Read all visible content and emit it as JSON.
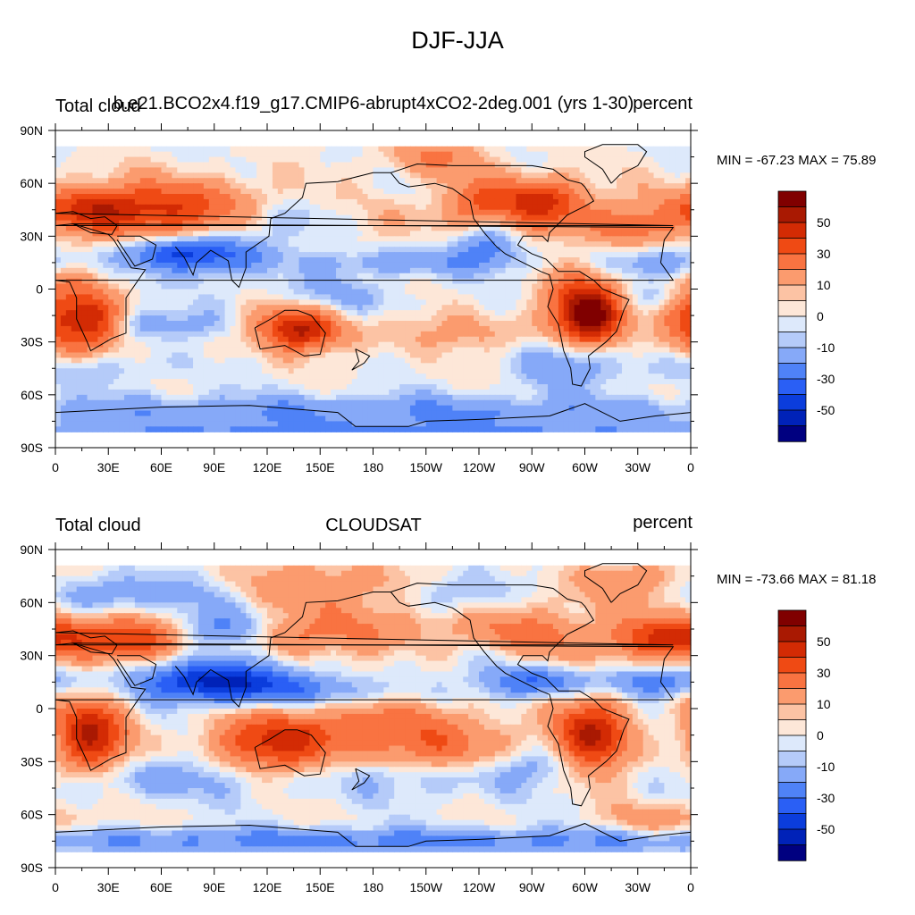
{
  "title": "DJF-JJA",
  "panels": [
    {
      "left_title": "Total cloud",
      "center_title": "b.e21.BCO2x4.f19_g17.CMIP6-abrupt4xCO2-2deg.001 (yrs 1-30)",
      "right_title": "percent",
      "stats": "MIN = -67.23 MAX =  75.89"
    },
    {
      "left_title": "Total cloud",
      "center_title": "CLOUDSAT",
      "right_title": "percent",
      "stats": "MIN = -73.66 MAX =  81.18"
    }
  ],
  "chart_data": {
    "type": "heatmap",
    "subtype": "filled-contour map",
    "x_ticks": [
      "0",
      "30E",
      "60E",
      "90E",
      "120E",
      "150E",
      "180",
      "150W",
      "120W",
      "90W",
      "60W",
      "30W",
      "0"
    ],
    "y_ticks": [
      "90N",
      "60N",
      "30N",
      "0",
      "30S",
      "60S",
      "90S"
    ],
    "colorbar": {
      "levels": [
        -60,
        -50,
        -40,
        -30,
        -20,
        -10,
        -5,
        0,
        5,
        10,
        20,
        30,
        40,
        50,
        60
      ],
      "labels": [
        "50",
        "30",
        "10",
        "0",
        "-10",
        "-30",
        "-50"
      ],
      "colors": [
        "#000080",
        "#0022b8",
        "#0b3ddc",
        "#2a5ff5",
        "#4f82f7",
        "#86a9f8",
        "#b5cbf9",
        "#dde9fb",
        "#fde7d8",
        "#fcc3a4",
        "#fb9b6e",
        "#f97341",
        "#ef4a14",
        "#d32b04",
        "#a91902",
        "#800000"
      ]
    }
  }
}
